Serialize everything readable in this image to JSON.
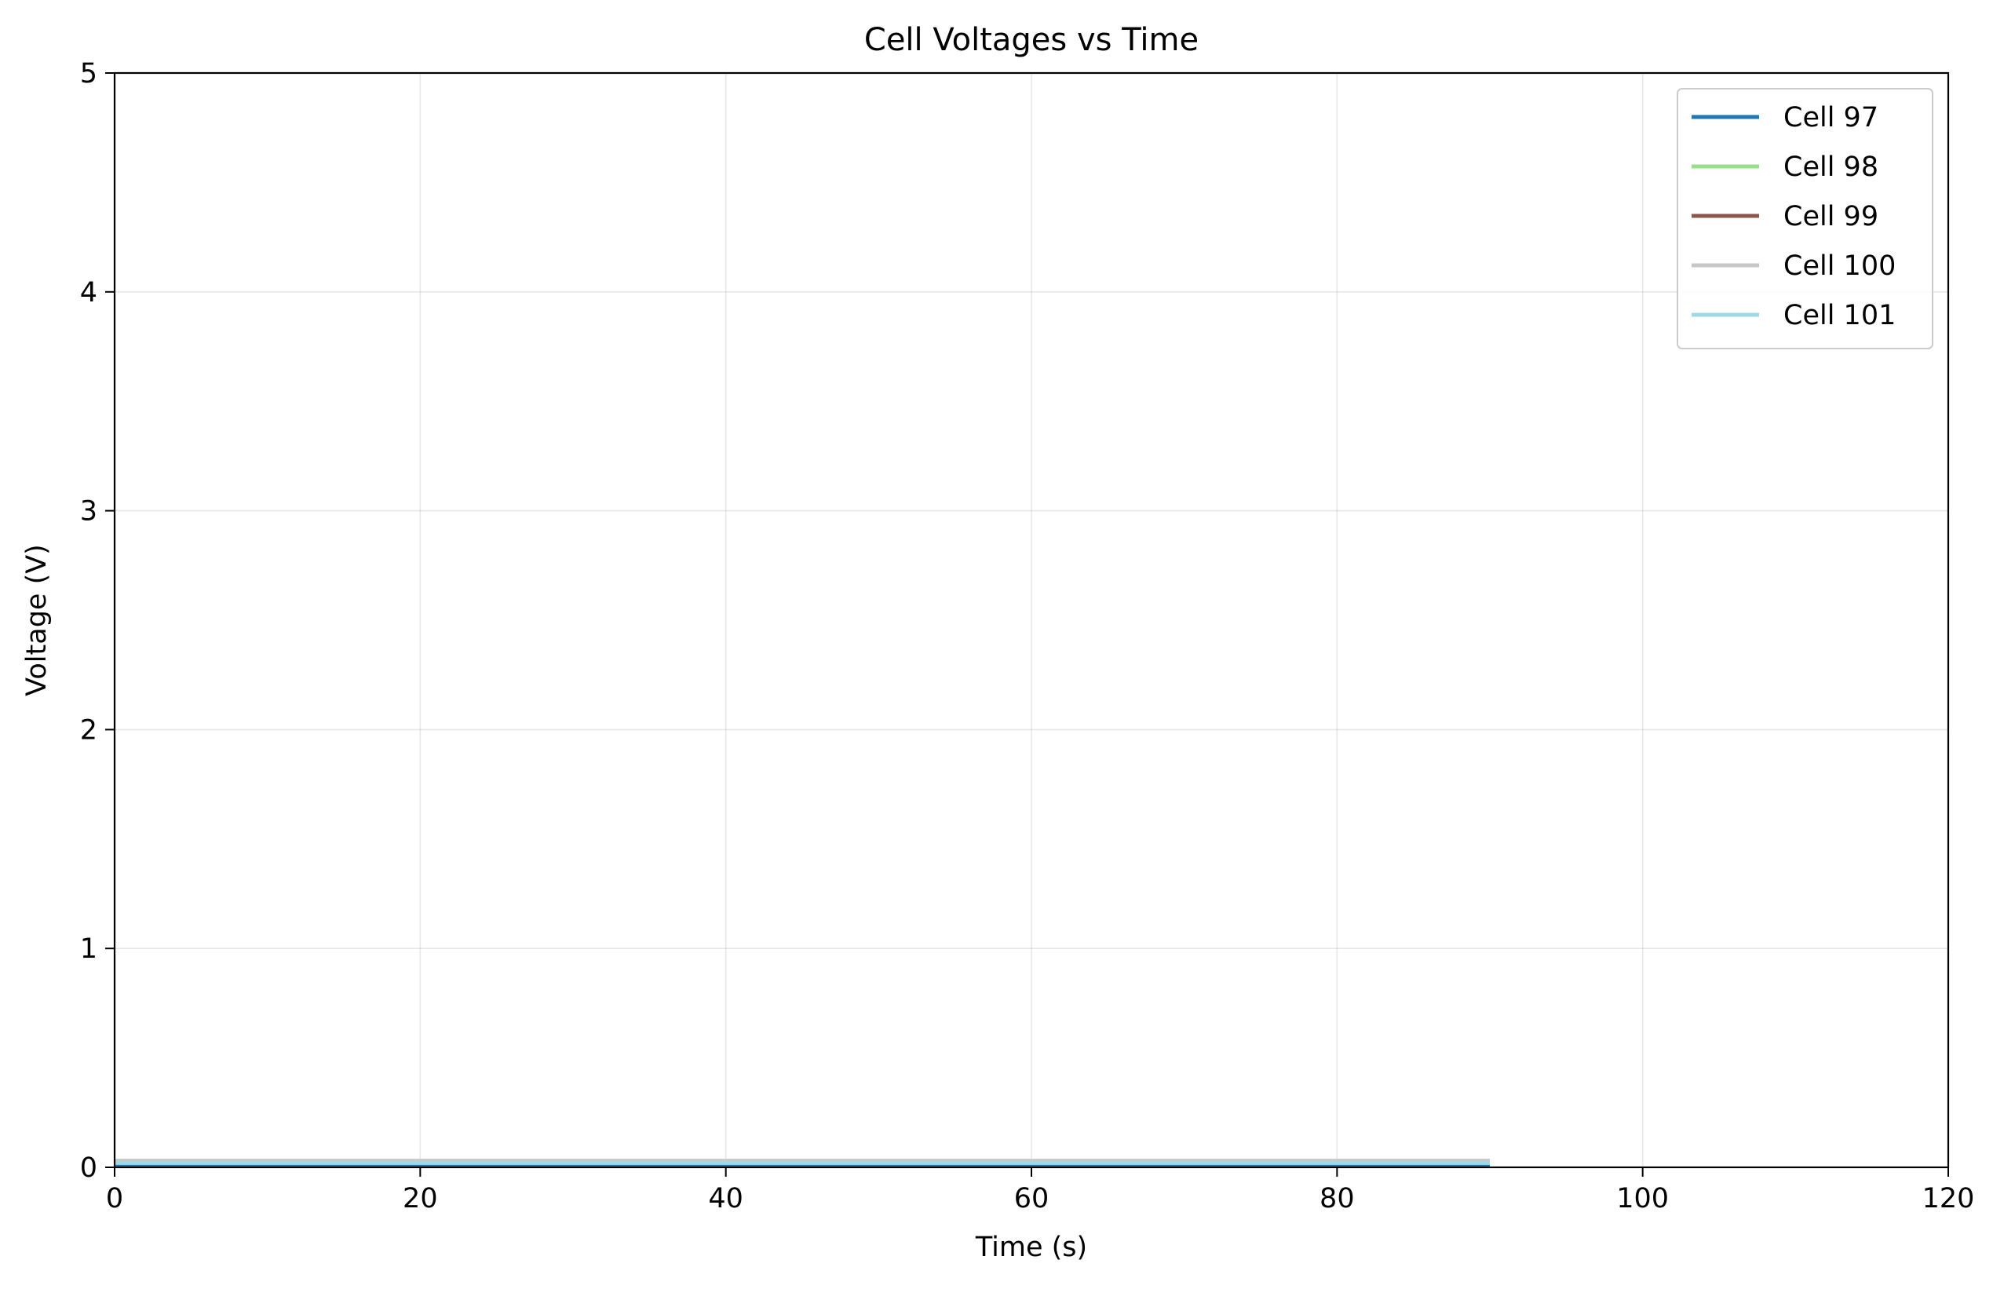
{
  "chart_data": {
    "type": "line",
    "title": "Cell Voltages vs Time",
    "xlabel": "Time (s)",
    "ylabel": "Voltage (V)",
    "xlim": [
      0,
      120
    ],
    "ylim": [
      0,
      5
    ],
    "xticks": [
      0,
      20,
      40,
      60,
      80,
      100,
      120
    ],
    "yticks": [
      0,
      1,
      2,
      3,
      4,
      5
    ],
    "grid": true,
    "legend_position": "top-right",
    "series": [
      {
        "name": "Cell 97",
        "color": "#1f77b4",
        "x": [
          0,
          90
        ],
        "y": [
          0.01,
          0.01
        ]
      },
      {
        "name": "Cell 98",
        "color": "#98df8a",
        "x": [
          0,
          90
        ],
        "y": [
          0.02,
          0.02
        ]
      },
      {
        "name": "Cell 99",
        "color": "#8c564b",
        "x": [
          0,
          90
        ],
        "y": [
          0.02,
          0.02
        ]
      },
      {
        "name": "Cell 100",
        "color": "#c7c7c7",
        "x": [
          0,
          90
        ],
        "y": [
          0.03,
          0.03
        ]
      },
      {
        "name": "Cell 101",
        "color": "#9edae5",
        "x": [
          0,
          90
        ],
        "y": [
          0.02,
          0.02
        ]
      }
    ]
  }
}
